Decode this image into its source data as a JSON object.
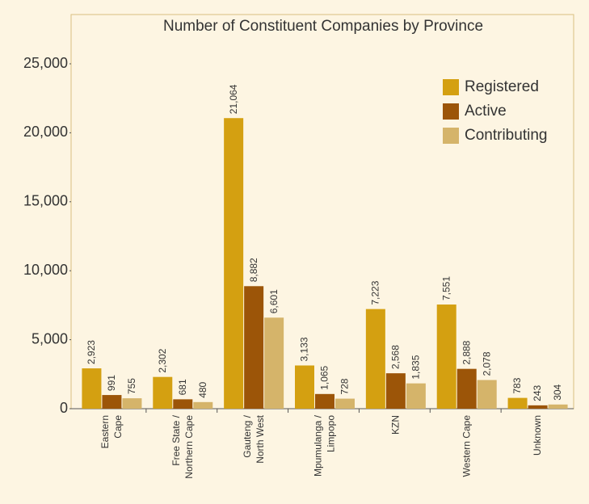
{
  "chart_data": {
    "type": "bar",
    "title": "Number of Constituent Companies by Province",
    "categories": [
      [
        "Eastern",
        "Cape"
      ],
      [
        "Free State /",
        "Northern Cape"
      ],
      [
        "Gauteng /",
        "North West"
      ],
      [
        "Mpumulanga /",
        "Limpopo"
      ],
      [
        "KZN"
      ],
      [
        "Western Cape"
      ],
      [
        "Unknown"
      ]
    ],
    "series": [
      {
        "name": "Registered",
        "color": "#d4a011",
        "values": [
          2923,
          2302,
          21064,
          3133,
          7223,
          7551,
          783
        ],
        "value_labels": [
          "2,923",
          "2,302",
          "21,064",
          "3,133",
          "7,223",
          "7,551",
          "783"
        ]
      },
      {
        "name": "Active",
        "color": "#9c5508",
        "values": [
          991,
          681,
          8882,
          1065,
          2568,
          2888,
          243
        ],
        "value_labels": [
          "991",
          "681",
          "8,882",
          "1,065",
          "2,568",
          "2,888",
          "243"
        ]
      },
      {
        "name": "Contributing",
        "color": "#d5b46a",
        "values": [
          755,
          480,
          6601,
          728,
          1835,
          2078,
          304
        ],
        "value_labels": [
          "755",
          "480",
          "6,601",
          "728",
          "1,835",
          "2,078",
          "304"
        ]
      }
    ],
    "ylim": [
      0,
      25000
    ],
    "yticks": [
      0,
      {
        "value": 5000,
        "label": "5,000"
      },
      {
        "value": 10000,
        "label": "10,000"
      },
      {
        "value": 15000,
        "label": "15,000"
      },
      {
        "value": 20000,
        "label": "20,000"
      },
      {
        "value": 25000,
        "label": "25,000"
      }
    ],
    "legend": "upper right",
    "grid": false
  }
}
